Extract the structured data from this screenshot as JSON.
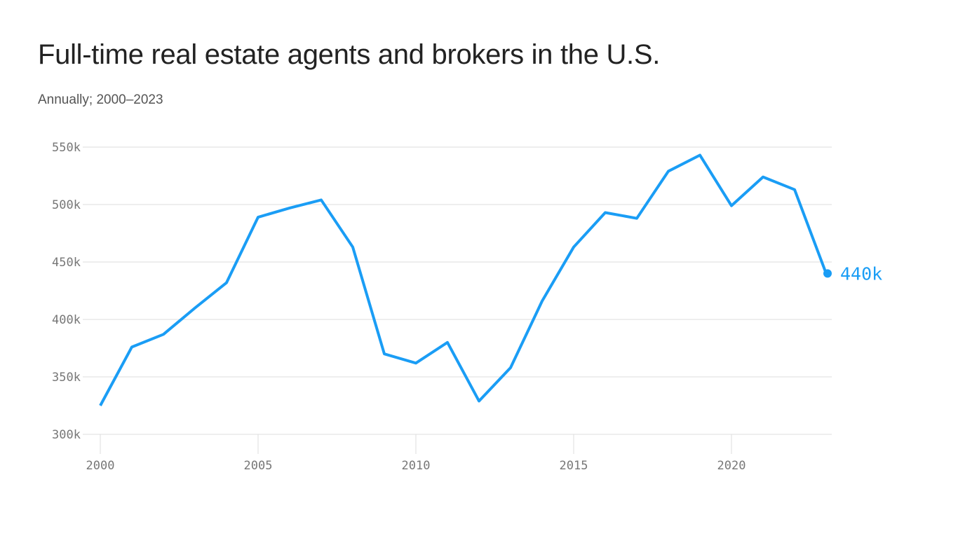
{
  "title": "Full-time real estate agents and brokers in the U.S.",
  "subtitle": "Annually; 2000–2023",
  "colors": {
    "line": "#1a9df5",
    "grid": "#dddddd",
    "text": "#222222"
  },
  "chart_data": {
    "type": "line",
    "title": "Full-time real estate agents and brokers in the U.S.",
    "subtitle": "Annually; 2000–2023",
    "x": [
      2000,
      2001,
      2002,
      2003,
      2004,
      2005,
      2006,
      2007,
      2008,
      2009,
      2010,
      2011,
      2012,
      2013,
      2014,
      2015,
      2016,
      2017,
      2018,
      2019,
      2020,
      2021,
      2022,
      2023
    ],
    "values": [
      325,
      376,
      387,
      410,
      432,
      489,
      497,
      504,
      463,
      370,
      362,
      380,
      329,
      358,
      416,
      463,
      493,
      488,
      529,
      543,
      499,
      524,
      513,
      440
    ],
    "xlim": [
      2000,
      2023
    ],
    "ylim": [
      300,
      550
    ],
    "yticks": [
      300,
      350,
      400,
      450,
      500,
      550
    ],
    "ytick_labels": [
      "300k",
      "350k",
      "400k",
      "450k",
      "500k",
      "550k"
    ],
    "xticks": [
      2000,
      2005,
      2010,
      2015,
      2020
    ],
    "xtick_labels": [
      "2000",
      "2005",
      "2010",
      "2015",
      "2020"
    ],
    "end_label": "440k",
    "grid": true
  }
}
